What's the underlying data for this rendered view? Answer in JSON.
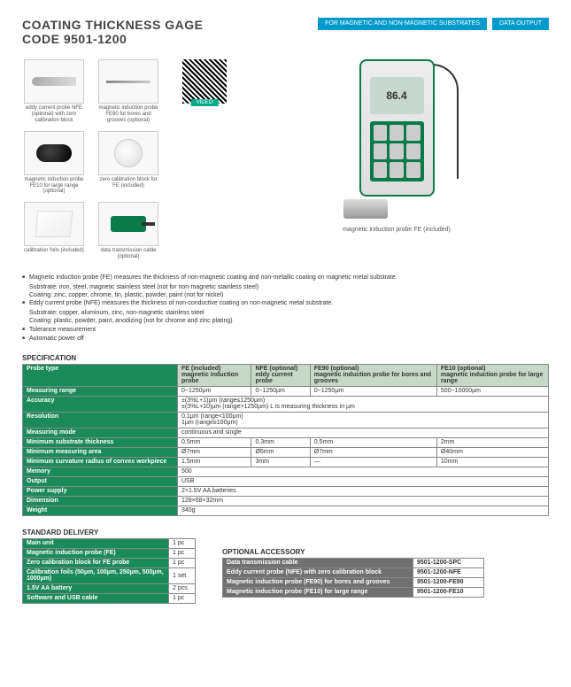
{
  "header": {
    "title_line1": "COATING THICKNESS GAGE",
    "title_line2": "CODE 9501-1200",
    "badges": [
      "FOR MAGNETIC AND\nNON-MAGNETIC SUBSTRATES",
      "DATA\nOUTPUT"
    ]
  },
  "thumbnails": [
    {
      "label": "eddy current probe NFE (optional) with zero calibration block",
      "shape": "probe-eddy"
    },
    {
      "label": "magnetic induction probe FE90 for bores and grooves (optional)",
      "shape": "probe-needle"
    },
    {
      "label": "magnetic induction probe FE10 for large range (optional)",
      "shape": "probe-fe10"
    },
    {
      "label": "zero calibration block for FE (included)",
      "shape": "cal-block"
    },
    {
      "label": "calibration foils (included)",
      "shape": "foils"
    },
    {
      "label": "data transmission cable (optional)",
      "shape": "cable"
    }
  ],
  "qr_label": "VIDEO",
  "device": {
    "screen": "86.4",
    "caption": "magnetic induction\nprobe FE (included)"
  },
  "bullets": [
    {
      "text": "Magnetic induction probe (FE) measures the thickness of non-magnetic coating and non-metallic coating on magnetic metal substrate.",
      "sub": [
        "Substrate: iron, steel, magnetic stainless steel (not for non-magnetic stainless steel)",
        "Coating: zinc, copper, chrome, tin, plastic, powder, paint (not for nickel)"
      ]
    },
    {
      "text": "Eddy current probe (NFE) measures the thickness of non-conductive coating on non-magnetic metal substrate.",
      "sub": [
        "Substrate: copper, aluminum, zinc, non-magnetic stainless steel",
        "Coating: plastic, powder, paint, anodizing (not for chrome and zinc plating)"
      ]
    },
    {
      "text": "Tolerance measurement"
    },
    {
      "text": "Automatic power off"
    }
  ],
  "spec": {
    "title": "SPECIFICATION",
    "columns": [
      "FE (included)",
      "NFE (optional)",
      "FE90 (optional)",
      "FE10 (optional)"
    ],
    "columns_sub": [
      "magnetic induction probe",
      "eddy current probe",
      "magnetic induction probe for bores and grooves",
      "magnetic induction probe for large range"
    ],
    "rows": [
      {
        "h": "Measuring range",
        "c": [
          "0~1250µm",
          "0~1250µm",
          "0~1250µm",
          "500~10000µm"
        ]
      },
      {
        "h": "Accuracy",
        "span": "±(3%L+1)µm   (range≤1250µm)\n±(3%L+10)µm   (range>1250µm)           L is measuring thickness in µm"
      },
      {
        "h": "Resolution",
        "span": "0.1µm   (range<100µm)\n1µm     (range≥100µm)"
      },
      {
        "h": "Measuring mode",
        "span": "continuous and single"
      },
      {
        "h": "Minimum substrate thickness",
        "c": [
          "0.5mm",
          "0.3mm",
          "0.5mm",
          "2mm"
        ]
      },
      {
        "h": "Minimum measuring area",
        "c": [
          "Ø7mm",
          "Ø5mm",
          "Ø7mm",
          "Ø40mm"
        ]
      },
      {
        "h": "Minimum curvature radius of convex workpiece",
        "c": [
          "1.5mm",
          "3mm",
          "—",
          "10mm"
        ]
      },
      {
        "h": "Memory",
        "span": "500"
      },
      {
        "h": "Output",
        "span": "USB"
      },
      {
        "h": "Power supply",
        "span": "2×1.5V AA batteries"
      },
      {
        "h": "Dimension",
        "span": "128×68×32mm"
      },
      {
        "h": "Weight",
        "span": "340g"
      }
    ]
  },
  "delivery": {
    "title": "STANDARD DELIVERY",
    "rows": [
      [
        "Main unit",
        "1 pc"
      ],
      [
        "Magnetic induction probe (FE)",
        "1 pc"
      ],
      [
        "Zero calibration block for FE probe",
        "1 pc"
      ],
      [
        "Calibration foils (50µm, 100µm, 250µm, 500µm, 1000µm)",
        "1 set"
      ],
      [
        "1.5V AA battery",
        "2 pcs"
      ],
      [
        "Software and USB cable",
        "1 pc"
      ]
    ]
  },
  "accessory": {
    "title": "OPTIONAL ACCESSORY",
    "rows": [
      [
        "Data transmission cable",
        "9501-1200-SPC"
      ],
      [
        "Eddy current probe (NFE) with zero calibration block",
        "9501-1200-NFE"
      ],
      [
        "Magnetic induction probe (FE90) for bores and grooves",
        "9501-1200-FE90"
      ],
      [
        "Magnetic induction probe (FE10) for large range",
        "9501-1200-FE10"
      ]
    ]
  }
}
